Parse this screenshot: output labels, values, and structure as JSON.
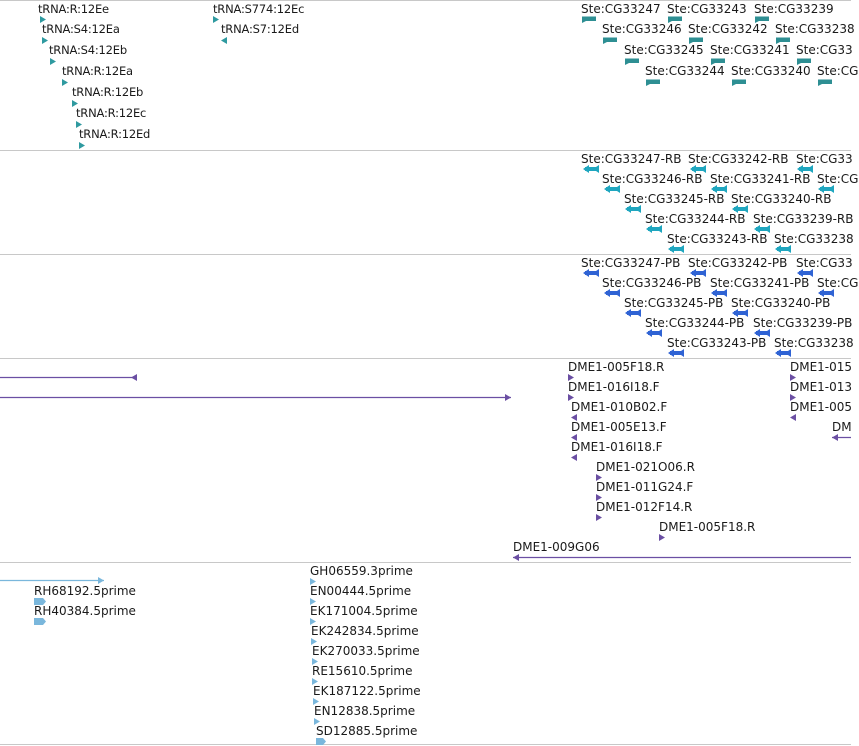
{
  "browser": {
    "title": "",
    "colors": {
      "trna": "#2f9aa0",
      "ste_gene": "#2e8f93",
      "ste_transcript": "#1fa6bf",
      "ste_protein": "#2f63d4",
      "clone": "#6b4fa3",
      "est": "#7ab7dc",
      "divider": "#c8c8c8"
    }
  },
  "tracks": {
    "trna": {
      "features": [
        {
          "label": "tRNA:R:12Ee",
          "dir": "right"
        },
        {
          "label": "tRNA:S4:12Ea",
          "dir": "right"
        },
        {
          "label": "tRNA:S4:12Eb",
          "dir": "right"
        },
        {
          "label": "tRNA:R:12Ea",
          "dir": "right"
        },
        {
          "label": "tRNA:R:12Eb",
          "dir": "right"
        },
        {
          "label": "tRNA:R:12Ec",
          "dir": "right"
        },
        {
          "label": "tRNA:R:12Ed",
          "dir": "right"
        },
        {
          "label": "tRNA:S774:12Ec",
          "dir": "right"
        },
        {
          "label": "tRNA:S7:12Ed",
          "dir": "left"
        }
      ]
    },
    "ste_genes": {
      "features": [
        {
          "label": "Ste:CG33247"
        },
        {
          "label": "Ste:CG33243"
        },
        {
          "label": "Ste:CG33239"
        },
        {
          "label": "Ste:CG33246"
        },
        {
          "label": "Ste:CG33242"
        },
        {
          "label": "Ste:CG33238"
        },
        {
          "label": "Ste:CG33245"
        },
        {
          "label": "Ste:CG33241"
        },
        {
          "label": "Ste:CG33"
        },
        {
          "label": "Ste:CG33244"
        },
        {
          "label": "Ste:CG33240"
        },
        {
          "label": "Ste:CG"
        }
      ]
    },
    "ste_transcripts": {
      "features": [
        {
          "label": "Ste:CG33247-RB"
        },
        {
          "label": "Ste:CG33242-RB"
        },
        {
          "label": "Ste:CG33"
        },
        {
          "label": "Ste:CG33246-RB"
        },
        {
          "label": "Ste:CG33241-RB"
        },
        {
          "label": "Ste:CG"
        },
        {
          "label": "Ste:CG33245-RB"
        },
        {
          "label": "Ste:CG33240-RB"
        },
        {
          "label": "Ste:CG33244-RB"
        },
        {
          "label": "Ste:CG33239-RB"
        },
        {
          "label": "Ste:CG33243-RB"
        },
        {
          "label": "Ste:CG33238"
        }
      ]
    },
    "ste_proteins": {
      "features": [
        {
          "label": "Ste:CG33247-PB"
        },
        {
          "label": "Ste:CG33242-PB"
        },
        {
          "label": "Ste:CG33"
        },
        {
          "label": "Ste:CG33246-PB"
        },
        {
          "label": "Ste:CG33241-PB"
        },
        {
          "label": "Ste:CG"
        },
        {
          "label": "Ste:CG33245-PB"
        },
        {
          "label": "Ste:CG33240-PB"
        },
        {
          "label": "Ste:CG33244-PB"
        },
        {
          "label": "Ste:CG33239-PB"
        },
        {
          "label": "Ste:CG33243-PB"
        },
        {
          "label": "Ste:CG33238"
        }
      ]
    },
    "clones": {
      "features": [
        {
          "label": "DME1-005F18.R"
        },
        {
          "label": "DME1-016I18.F"
        },
        {
          "label": "DME1-010B02.F"
        },
        {
          "label": "DME1-005E13.F"
        },
        {
          "label": "DME1-016I18.F"
        },
        {
          "label": "DME1-021O06.R"
        },
        {
          "label": "DME1-011G24.F"
        },
        {
          "label": "DME1-012F14.R"
        },
        {
          "label": "DME1-005F18.R"
        },
        {
          "label": "DME1-009G06"
        },
        {
          "label": "DME1-015"
        },
        {
          "label": "DME1-013"
        },
        {
          "label": "DME1-005"
        },
        {
          "label": "DM"
        }
      ]
    },
    "ests": {
      "features": [
        {
          "label": "RH68192.5prime"
        },
        {
          "label": "RH40384.5prime"
        },
        {
          "label": "GH06559.3prime"
        },
        {
          "label": "EN00444.5prime"
        },
        {
          "label": "EK171004.5prime"
        },
        {
          "label": "EK242834.5prime"
        },
        {
          "label": "EK270033.5prime"
        },
        {
          "label": "RE15610.5prime"
        },
        {
          "label": "EK187122.5prime"
        },
        {
          "label": "EN12838.5prime"
        },
        {
          "label": "SD12885.5prime"
        }
      ]
    }
  }
}
